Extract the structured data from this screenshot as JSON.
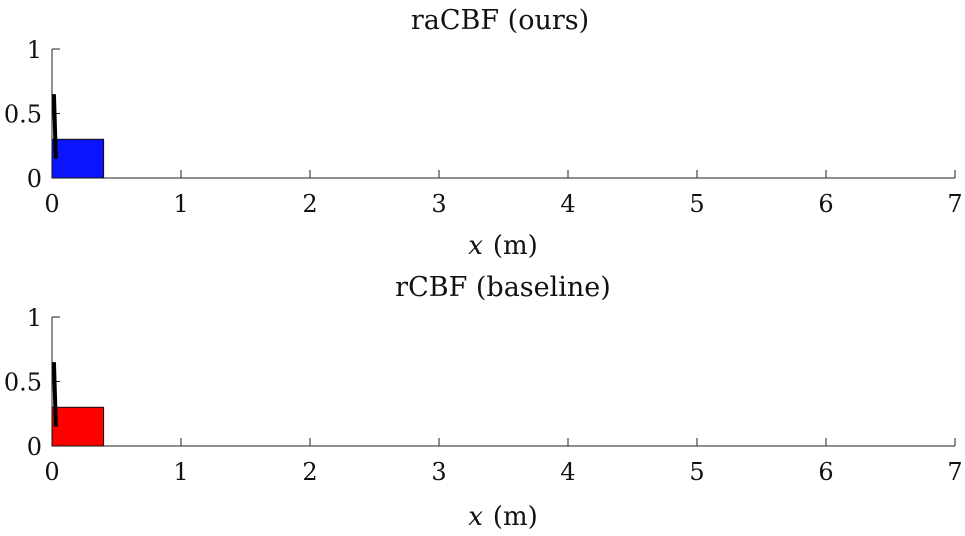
{
  "chart_data": [
    {
      "type": "scatter",
      "title": "raCBF (ours)",
      "xlabel_var": "x",
      "xlabel_unit": "(m)",
      "ylabel": "",
      "xlim": [
        0,
        7
      ],
      "ylim": [
        0,
        1
      ],
      "xticks": [
        "0",
        "1",
        "2",
        "3",
        "4",
        "5",
        "6",
        "7"
      ],
      "yticks": [
        "0",
        "0.5",
        "1"
      ],
      "grid": false,
      "block": {
        "x": [
          0,
          0.4
        ],
        "y": [
          0,
          0.3
        ],
        "color": "#0a14ff"
      },
      "pole": {
        "x": [
          0.015,
          0.03
        ],
        "y": [
          0.15,
          0.65
        ],
        "color": "#000000"
      }
    },
    {
      "type": "scatter",
      "title": "rCBF (baseline)",
      "xlabel_var": "x",
      "xlabel_unit": "(m)",
      "ylabel": "",
      "xlim": [
        0,
        7
      ],
      "ylim": [
        0,
        1
      ],
      "xticks": [
        "0",
        "1",
        "2",
        "3",
        "4",
        "5",
        "6",
        "7"
      ],
      "yticks": [
        "0",
        "0.5",
        "1"
      ],
      "grid": false,
      "block": {
        "x": [
          0,
          0.4
        ],
        "y": [
          0,
          0.3
        ],
        "color": "#ff0000"
      },
      "pole": {
        "x": [
          0.015,
          0.03
        ],
        "y": [
          0.15,
          0.65
        ],
        "color": "#000000"
      }
    }
  ]
}
